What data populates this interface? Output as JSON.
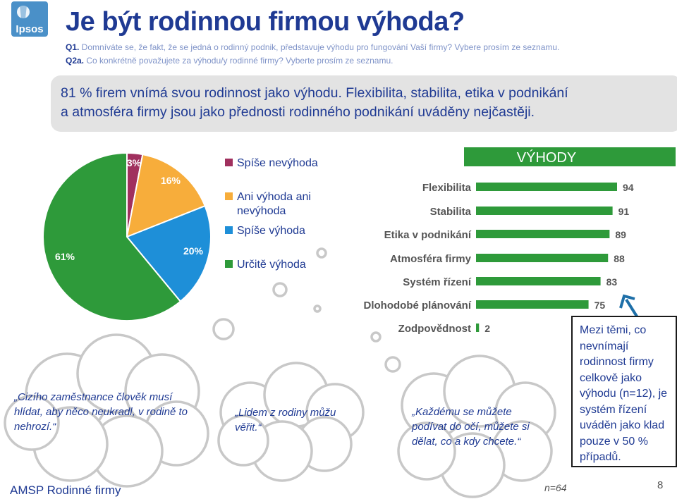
{
  "header": {
    "title": "Je být rodinnou firmou výhoda?",
    "q1_code": "Q1.",
    "q1_text": " Domníváte se, že fakt, že se jedná o rodinný podnik, představuje výhodu pro fungování Vaší firmy? Vybere prosím ze seznamu.",
    "q2_code": "Q2a.",
    "q2_text": " Co konkrétně považujete za výhodu/y rodinné firmy? Vyberte prosím ze seznamu."
  },
  "logo": {
    "text": "Ipsos",
    "color": "#4a90c8"
  },
  "summary": {
    "line1": "81 % firem vnímá svou rodinnost jako výhodu. Flexibilita, stabilita, etika v podnikání",
    "line2": "a atmosféra firmy jsou jako přednosti rodinného podnikání uváděny nejčastěji."
  },
  "chart_data": [
    {
      "type": "pie",
      "labels": [
        "Spíše nevýhoda",
        "Ani výhoda ani nevýhoda",
        "Spíše výhoda",
        "Určitě výhoda"
      ],
      "values": [
        3,
        16,
        20,
        61
      ],
      "value_labels": [
        "3%",
        "16%",
        "20%",
        "61%"
      ],
      "colors": [
        "#a0305e",
        "#f7ad3b",
        "#1e8fd8",
        "#2e9a3a"
      ],
      "legend_lines": [
        [
          "Spíše nevýhoda"
        ],
        [
          "Ani výhoda ani",
          "nevýhoda"
        ],
        [
          "Spíše výhoda"
        ],
        [
          "Určitě výhoda"
        ]
      ]
    },
    {
      "type": "bar",
      "orientation": "horizontal",
      "title": "VÝHODY",
      "categories": [
        "Flexibilita",
        "Stabilita",
        "Etika v podnikání",
        "Atmosféra firmy",
        "Systém řízení",
        "Dlohodobé plánování",
        "Zodpovědnost"
      ],
      "values": [
        94,
        91,
        89,
        88,
        83,
        75,
        2
      ],
      "color": "#2e9a3a",
      "title_bg": "#2e9a3a"
    }
  ],
  "callout": {
    "text": "Mezi těmi, co nevnímají rodinnost firmy celkově jako výhodu (n=12), je systém řízení uváděn jako klad pouze v 50 % případů."
  },
  "quotes": [
    "„Cizího zaměstnance člověk musí hlídat, aby něco neukradl, v rodině to nehrozí.“",
    "„Lidem z rodiny můžu věřit.“",
    "„Každému se můžete podívat do očí, můžete si dělat, co a kdy chcete.“"
  ],
  "footer": {
    "left": "AMSP Rodinné firmy",
    "n": "n=64",
    "page": "8"
  }
}
